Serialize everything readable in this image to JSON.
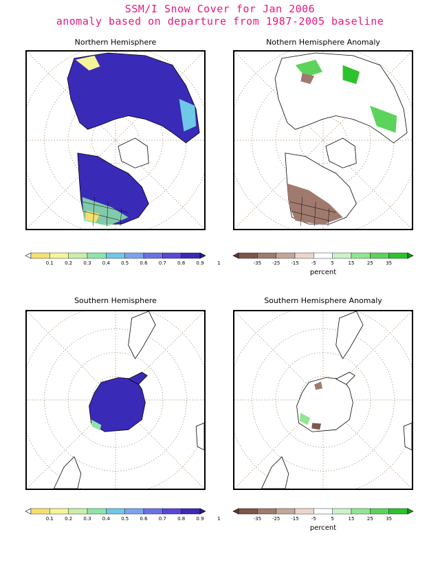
{
  "title": {
    "line1": "SSM/I Snow Cover for Jan 2006",
    "line2": "anomaly based on departure from 1987-2005 baseline"
  },
  "panels": {
    "nh": {
      "title": "Northern Hemisphere"
    },
    "nha": {
      "title": "Nothern Hemisphere Anomaly"
    },
    "sh": {
      "title": "Southern Hemisphere"
    },
    "sha": {
      "title": "Southern Hemisphere Anomaly"
    }
  },
  "colorbars": {
    "fraction": {
      "labels": [
        "0.1",
        "0.2",
        "0.3",
        "0.4",
        "0.5",
        "0.6",
        "0.7",
        "0.8",
        "0.9",
        "1"
      ],
      "colors": [
        "#ffffff",
        "#f7e06c",
        "#f4f49a",
        "#c8f0a8",
        "#8ee6a8",
        "#6ec8e6",
        "#7aa4f0",
        "#6a72ea",
        "#5a46d8",
        "#3a2ab8",
        "#241c9a"
      ]
    },
    "anomaly": {
      "labels": [
        "-35",
        "-25",
        "-15",
        "-5",
        "5",
        "15",
        "25",
        "35"
      ],
      "unit": "percent",
      "colors": [
        "#5e3a2e",
        "#7e564a",
        "#a07a6e",
        "#c6a69a",
        "#ead6cc",
        "#ffffff",
        "#c8f4c8",
        "#92e692",
        "#5cd45c",
        "#2ec22e",
        "#10a010"
      ]
    }
  },
  "colors": {
    "title": "#e8157d",
    "snow_high": "#3a2ab8",
    "land_outline": "#000000",
    "grid": "#a08060"
  }
}
